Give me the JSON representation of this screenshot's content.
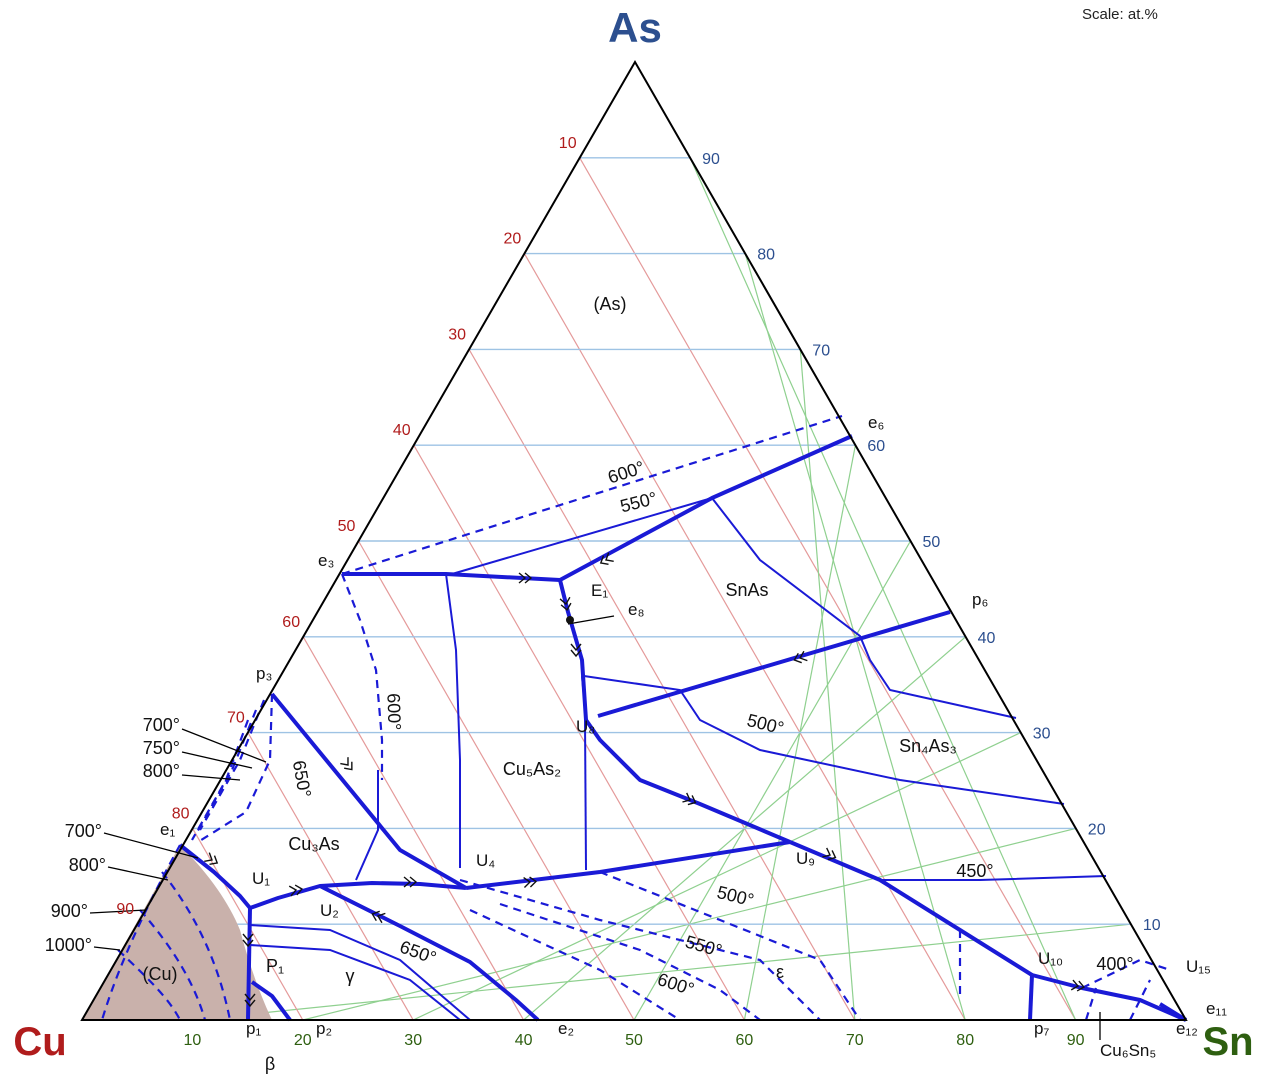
{
  "scale_note": "Scale: at.%",
  "components": {
    "top": "As",
    "left": "Cu",
    "right": "Sn"
  },
  "colors": {
    "as_color": "#2c4f8f",
    "cu_color": "#b01c1c",
    "sn_color": "#2e5f10",
    "boundary": "#1a1ad6",
    "cu_region_fill": "#c9b1ab",
    "grid_as": "#9ec3e4",
    "grid_cu": "#e49a9a",
    "grid_sn": "#8fd08f"
  },
  "axes": {
    "as_ticks": [
      "10",
      "20",
      "30",
      "40",
      "50",
      "60",
      "70",
      "80",
      "90"
    ],
    "cu_ticks": [
      "90",
      "80",
      "70",
      "60",
      "50",
      "40",
      "30",
      "20",
      "10"
    ],
    "sn_ticks": [
      "10",
      "20",
      "30",
      "40",
      "50",
      "60",
      "70",
      "80",
      "90"
    ]
  },
  "phase_regions": [
    "(As)",
    "SnAs",
    "Sn₄As₃",
    "Cu₅As₂",
    "Cu₃As",
    "(Cu)",
    "γ",
    "ε",
    "β",
    "P₁"
  ],
  "isotherms": [
    "600°",
    "550°",
    "600°",
    "650°",
    "500°",
    "450°",
    "400°",
    "500°",
    "550°",
    "600°",
    "650°",
    "700°",
    "750°",
    "800°",
    "700°",
    "800°",
    "900°",
    "1000°"
  ],
  "invariant_points": [
    "e₆",
    "e₃",
    "E₁",
    "e₈",
    "p₆",
    "p₃",
    "e₁",
    "U₈",
    "U₁",
    "U₂",
    "U₄",
    "U₉",
    "U₁₀",
    "U₁₅",
    "e₁₁",
    "e₁₂",
    "p₁",
    "p₂",
    "e₂",
    "p₇"
  ],
  "compound_marks": [
    "Cu₆Sn₅"
  ]
}
